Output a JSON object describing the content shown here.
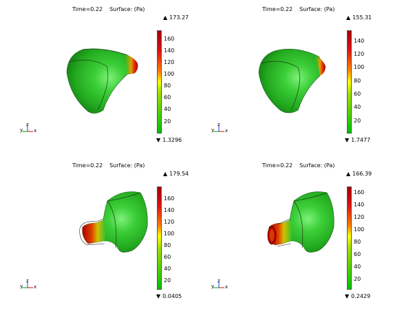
{
  "colors": {
    "background": "#ffffff",
    "colorbar_top": "#a50000",
    "colorbar_mid": "#ffff00",
    "colorbar_bottom": "#00c000"
  },
  "triad": {
    "y": "y",
    "z": "z",
    "x": "x"
  },
  "panels": [
    {
      "title_time": "Time=0.22",
      "title_surface": "Surface:  (Pa)",
      "max_arrow": "▲",
      "max": "173.27",
      "min_arrow": "▼",
      "min": "1.3296",
      "ticks": [
        "160",
        "140",
        "120",
        "100",
        "80",
        "60",
        "40",
        "20"
      ]
    },
    {
      "title_time": "Time=0.22",
      "title_surface": "Surface:  (Pa)",
      "max_arrow": "▲",
      "max": "155.31",
      "min_arrow": "▼",
      "min": "1.7477",
      "ticks": [
        "140",
        "120",
        "100",
        "80",
        "60",
        "40",
        "20"
      ]
    },
    {
      "title_time": "Time=0.22",
      "title_surface": "Surface:  (Pa)",
      "max_arrow": "▲",
      "max": "179.54",
      "min_arrow": "▼",
      "min": "0.0405",
      "ticks": [
        "160",
        "140",
        "120",
        "100",
        "80",
        "60",
        "40",
        "20"
      ]
    },
    {
      "title_time": "Time=0.22",
      "title_surface": "Surface:  (Pa)",
      "max_arrow": "▲",
      "max": "166.39",
      "min_arrow": "▼",
      "min": "0.2429",
      "ticks": [
        "160",
        "140",
        "120",
        "100",
        "80",
        "60",
        "40",
        "20"
      ]
    }
  ]
}
